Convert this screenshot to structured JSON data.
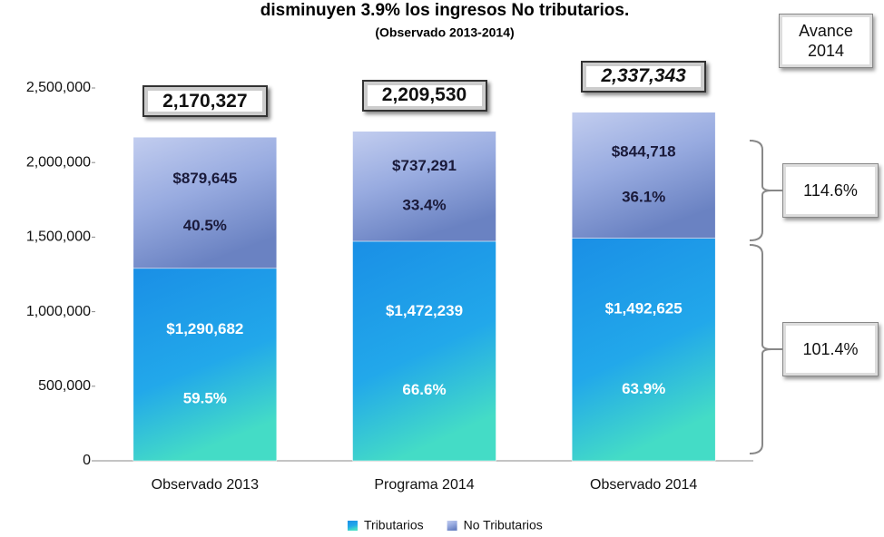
{
  "chart_data": {
    "type": "stacked_bar",
    "title": "disminuyen 3.9% los ingresos No tributarios.",
    "subtitle": "(Observado 2013-2014)",
    "categories": [
      "Observado 2013",
      "Programa 2014",
      "Observado 2014"
    ],
    "series": [
      {
        "name": "Tributarios",
        "color": "#1f9ee8",
        "values": [
          1290682,
          1472239,
          1492625
        ],
        "value_labels": [
          "$1,290,682",
          "$1,472,239",
          "$1,492,625"
        ],
        "percent_values": [
          59.5,
          66.6,
          63.9
        ],
        "percent_labels": [
          "59.5%",
          "66.6%",
          "63.9%"
        ]
      },
      {
        "name": "No Tributarios",
        "color": "#9aaee0",
        "values": [
          879645,
          737291,
          844718
        ],
        "value_labels": [
          "$879,645",
          "$737,291",
          "$844,718"
        ],
        "percent_values": [
          40.5,
          33.4,
          36.1
        ],
        "percent_labels": [
          "40.5%",
          "33.4%",
          "36.1%"
        ]
      }
    ],
    "totals": [
      2170327,
      2209530,
      2337343
    ],
    "total_labels": [
      "2,170,327",
      "2,209,530",
      "2,337,343"
    ],
    "avance": {
      "title": "Avance 2014",
      "values": [
        101.4,
        114.6
      ],
      "labels": [
        "101.4%",
        "114.6%"
      ]
    },
    "ylim": [
      0,
      2500000
    ],
    "yticks": [
      0,
      {
        "value": 500000,
        "label": "500,000"
      },
      {
        "value": 1000000,
        "label": "1,000,000"
      },
      {
        "value": 1500000,
        "label": "1,500,000"
      },
      {
        "value": 2000000,
        "label": "2,000,000"
      },
      {
        "value": 2500000,
        "label": "2,500,000"
      }
    ],
    "legend": "bottom"
  }
}
